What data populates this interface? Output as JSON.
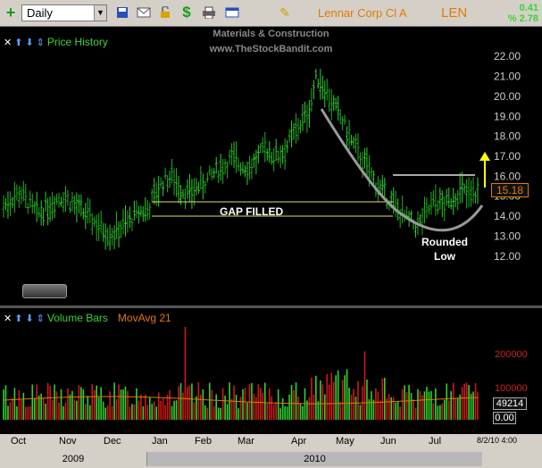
{
  "toolbar": {
    "period": "Daily",
    "company": "Lennar Corp Cl A",
    "ticker": "LEN",
    "change_abs": "0.41",
    "change_pct": "% 2.78"
  },
  "price_pane": {
    "title": "Price History",
    "watermark_line1": "Materials & Construction",
    "watermark_line2": "www.TheStockBandit.com",
    "yticks": [
      "22.00",
      "21.00",
      "20.00",
      "19.00",
      "18.00",
      "17.00",
      "16.00",
      "15.00",
      "14.00",
      "13.00",
      "12.00"
    ],
    "last_price": "15.18",
    "annotation_gap": "GAP FILLED",
    "annotation_low_1": "Rounded",
    "annotation_low_2": "Low"
  },
  "volume_pane": {
    "title": "Volume Bars",
    "ma_label": "MovAvg 21",
    "yticks": [
      "200000",
      "100000"
    ],
    "last_volume": "49214",
    "zero": "0.00"
  },
  "xaxis": {
    "months": [
      "Oct",
      "Nov",
      "Dec",
      "Jan",
      "Feb",
      "Mar",
      "Apr",
      "May",
      "Jun",
      "Jul"
    ],
    "years": [
      "2009",
      "2010"
    ],
    "date_stamp": "8/2/10 4:00"
  },
  "colors": {
    "up": "#2fd32f",
    "down": "#d01818",
    "accent": "#e07b00",
    "annot": "#ffff00"
  },
  "chart_data": {
    "type": "bar",
    "ylim": [
      11.5,
      22.5
    ],
    "closes_approx": [
      14.5,
      14.9,
      15.2,
      14.6,
      14.1,
      14.4,
      14.8,
      15.0,
      14.7,
      14.3,
      14.0,
      13.6,
      13.3,
      13.1,
      13.5,
      13.8,
      14.2,
      14.3,
      15.2,
      15.8,
      16.0,
      15.3,
      15.1,
      15.5,
      15.8,
      16.2,
      16.5,
      16.9,
      16.6,
      16.4,
      16.9,
      17.4,
      17.0,
      17.2,
      17.9,
      18.6,
      19.2,
      21.0,
      20.4,
      19.5,
      18.8,
      17.8,
      17.1,
      16.4,
      15.6,
      15.1,
      14.6,
      14.1,
      13.7,
      13.5,
      14.2,
      14.8,
      14.5,
      14.9,
      15.3,
      15.0,
      15.2
    ]
  }
}
